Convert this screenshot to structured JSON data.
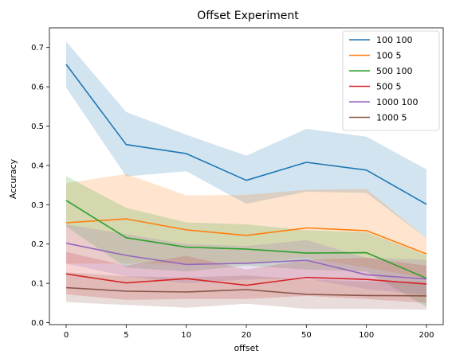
{
  "chart_data": {
    "type": "line",
    "title": "Offset Experiment",
    "xlabel": "offset",
    "ylabel": "Accuracy",
    "categories": [
      "0",
      "5",
      "10",
      "20",
      "50",
      "100",
      "200"
    ],
    "ylim": [
      -0.005,
      0.75
    ],
    "yticks": [
      0.0,
      0.1,
      0.2,
      0.3,
      0.4,
      0.5,
      0.6,
      0.7
    ],
    "ytick_labels": [
      "0.0",
      "0.1",
      "0.2",
      "0.3",
      "0.4",
      "0.5",
      "0.6",
      "0.7"
    ],
    "grid": false,
    "legend": "top-right",
    "series": [
      {
        "name": "100 100",
        "color": "#1f77b4",
        "values": [
          0.657,
          0.453,
          0.43,
          0.362,
          0.408,
          0.388,
          0.301
        ],
        "lower": [
          0.598,
          0.372,
          0.385,
          0.302,
          0.333,
          0.33,
          0.215
        ],
        "upper": [
          0.715,
          0.536,
          0.478,
          0.425,
          0.493,
          0.473,
          0.39
        ]
      },
      {
        "name": "100 5",
        "color": "#ff7f0e",
        "values": [
          0.254,
          0.264,
          0.236,
          0.222,
          0.241,
          0.234,
          0.175
        ],
        "lower": [
          0.15,
          0.15,
          0.15,
          0.15,
          0.165,
          0.14,
          0.112
        ],
        "upper": [
          0.355,
          0.378,
          0.324,
          0.325,
          0.338,
          0.34,
          0.215
        ]
      },
      {
        "name": "500 100",
        "color": "#2ca02c",
        "values": [
          0.311,
          0.216,
          0.192,
          0.187,
          0.177,
          0.178,
          0.113
        ],
        "lower": [
          0.245,
          0.14,
          0.13,
          0.145,
          0.135,
          0.13,
          0.04
        ],
        "upper": [
          0.373,
          0.292,
          0.255,
          0.25,
          0.235,
          0.23,
          0.172
        ]
      },
      {
        "name": "500 5",
        "color": "#d62728",
        "values": [
          0.124,
          0.101,
          0.112,
          0.095,
          0.115,
          0.11,
          0.098
        ],
        "lower": [
          0.072,
          0.058,
          0.06,
          0.06,
          0.068,
          0.06,
          0.05
        ],
        "upper": [
          0.18,
          0.145,
          0.17,
          0.135,
          0.16,
          0.165,
          0.145
        ]
      },
      {
        "name": "1000 100",
        "color": "#9467bd",
        "values": [
          0.202,
          0.171,
          0.148,
          0.151,
          0.159,
          0.122,
          0.111
        ],
        "lower": [
          0.15,
          0.118,
          0.1,
          0.11,
          0.112,
          0.085,
          0.07
        ],
        "upper": [
          0.25,
          0.225,
          0.2,
          0.195,
          0.21,
          0.165,
          0.16
        ]
      },
      {
        "name": "1000 5",
        "color": "#8c564b",
        "values": [
          0.089,
          0.08,
          0.078,
          0.084,
          0.072,
          0.069,
          0.068
        ],
        "lower": [
          0.052,
          0.045,
          0.038,
          0.048,
          0.035,
          0.035,
          0.033
        ],
        "upper": [
          0.128,
          0.118,
          0.115,
          0.12,
          0.11,
          0.105,
          0.105
        ]
      }
    ]
  }
}
